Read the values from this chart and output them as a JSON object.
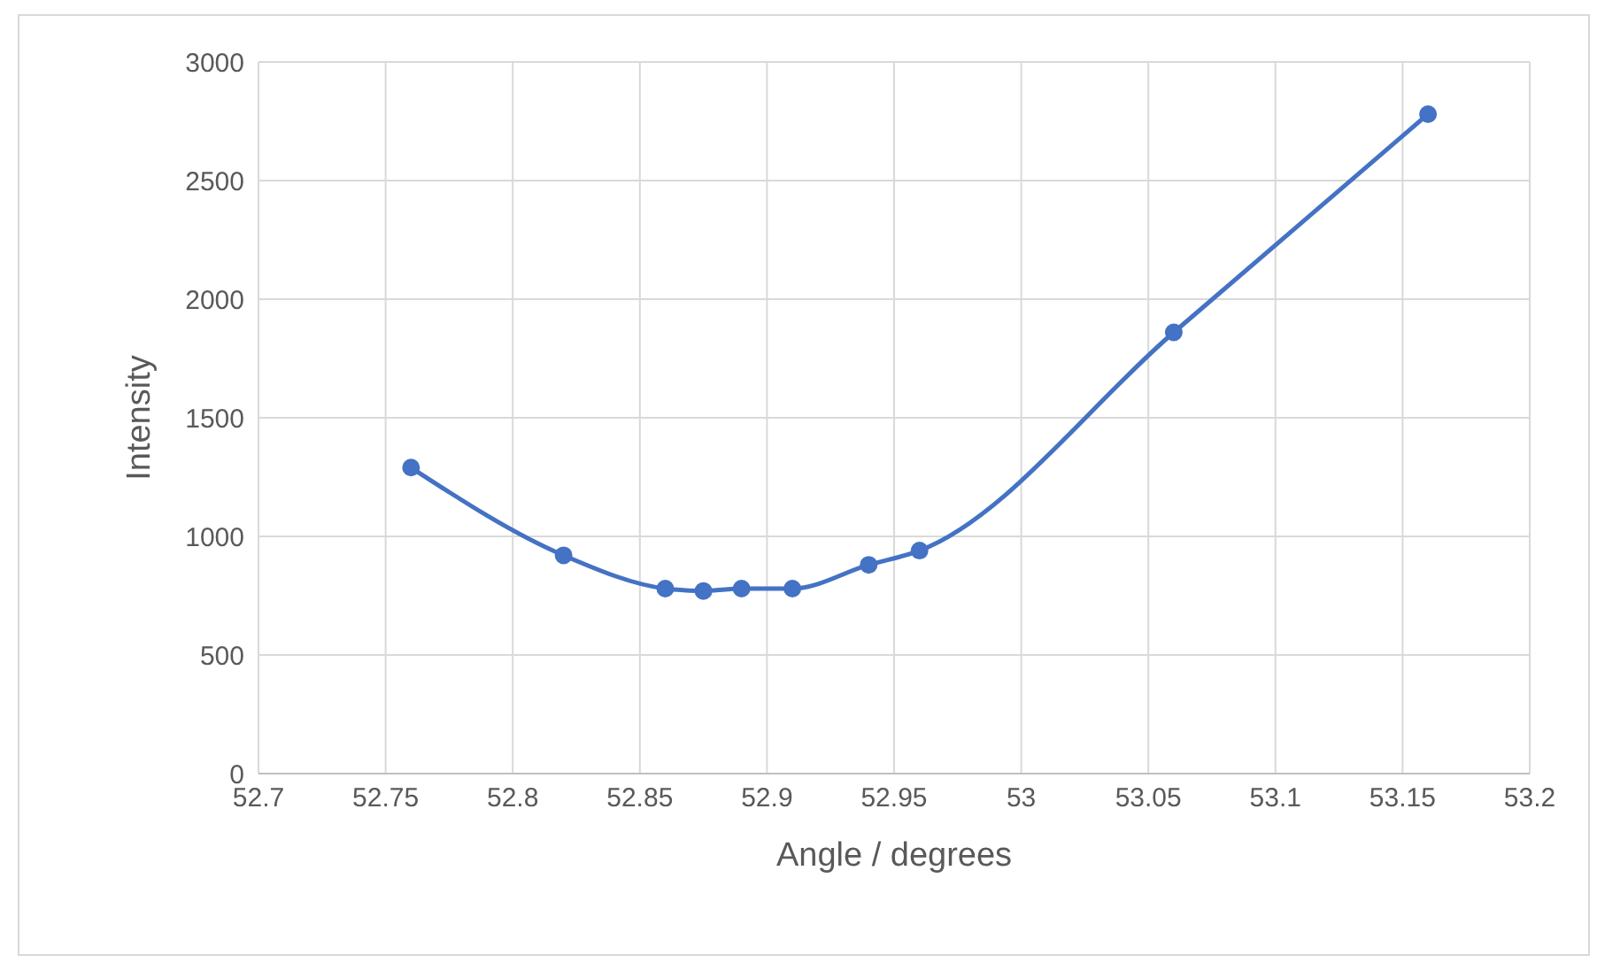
{
  "chart_data": {
    "type": "line",
    "xlabel": "Angle / degrees",
    "ylabel": "Intensity",
    "x": [
      52.76,
      52.82,
      52.86,
      52.875,
      52.89,
      52.91,
      52.94,
      52.96,
      53.06,
      53.16
    ],
    "series": [
      {
        "color": "#4472c4",
        "values": [
          1290,
          920,
          780,
          770,
          780,
          780,
          880,
          940,
          1860,
          2780
        ]
      }
    ],
    "xlim": [
      52.7,
      53.2
    ],
    "xticks": [
      52.7,
      52.75,
      52.8,
      52.85,
      52.9,
      52.95,
      53,
      53.05,
      53.1,
      53.15,
      53.2
    ],
    "ylim": [
      0,
      3000
    ],
    "yticks": [
      0,
      500,
      1000,
      1500,
      2000,
      2500,
      3000
    ],
    "grid": true,
    "legend": false,
    "marker": "circle",
    "line_style": "solid"
  }
}
